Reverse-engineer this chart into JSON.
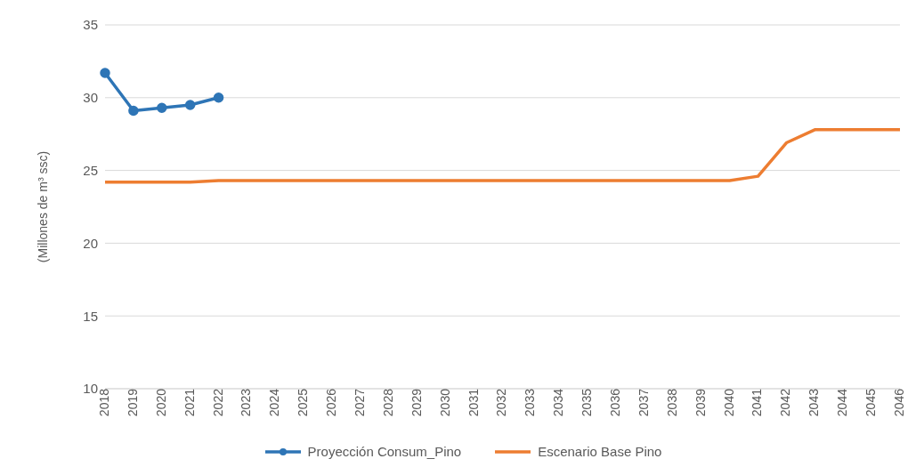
{
  "chart_data": {
    "type": "line",
    "ylabel": "(Millones de m³ ssc)",
    "categories": [
      "2018",
      "2019",
      "2020",
      "2021",
      "2022",
      "2023",
      "2024",
      "2025",
      "2026",
      "2027",
      "2028",
      "2029",
      "2030",
      "2031",
      "2032",
      "2033",
      "2034",
      "2035",
      "2036",
      "2037",
      "2038",
      "2039",
      "2040",
      "2041",
      "2042",
      "2043",
      "2044",
      "2045",
      "2046"
    ],
    "series": [
      {
        "name": "Proyección Consum_Pino",
        "color": "#2e75b6",
        "marker": "circle",
        "values": [
          31.7,
          29.1,
          29.3,
          29.5,
          30.0,
          null,
          null,
          null,
          null,
          null,
          null,
          null,
          null,
          null,
          null,
          null,
          null,
          null,
          null,
          null,
          null,
          null,
          null,
          null,
          null,
          null,
          null,
          null,
          null
        ]
      },
      {
        "name": "Escenario Base Pino",
        "color": "#ed7d31",
        "marker": "none",
        "values": [
          24.2,
          24.2,
          24.2,
          24.2,
          24.3,
          24.3,
          24.3,
          24.3,
          24.3,
          24.3,
          24.3,
          24.3,
          24.3,
          24.3,
          24.3,
          24.3,
          24.3,
          24.3,
          24.3,
          24.3,
          24.3,
          24.3,
          24.3,
          24.6,
          26.9,
          27.8,
          27.8,
          27.8,
          27.8
        ]
      }
    ],
    "ylim": [
      10,
      35
    ],
    "yticks": [
      10,
      15,
      20,
      25,
      30,
      35
    ],
    "grid": "y",
    "legend": "bottom"
  }
}
